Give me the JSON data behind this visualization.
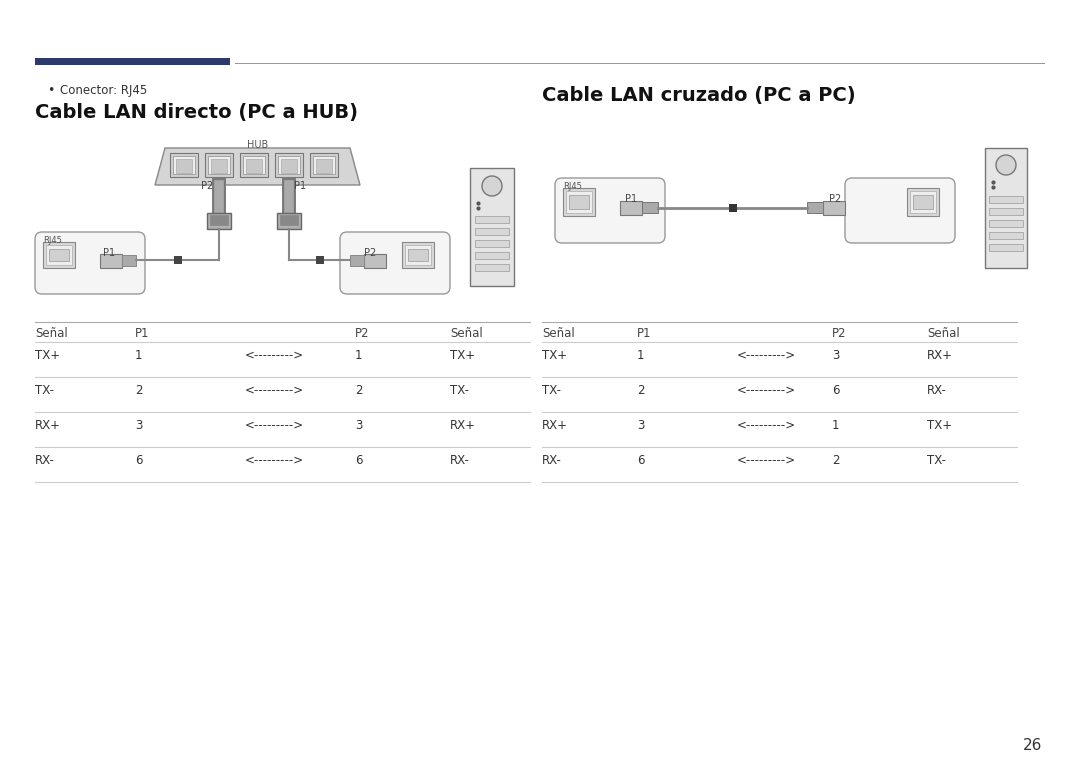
{
  "bg_color": "#ffffff",
  "page_number": "26",
  "header_bar_color": "#2b3a6b",
  "header_line_color": "#999999",
  "bullet_text": "Conector: RJ45",
  "left_title": "Cable LAN directo (PC a HUB)",
  "right_title": "Cable LAN cruzado (PC a PC)",
  "left_table_header": [
    "Señal",
    "P1",
    "",
    "P2",
    "Señal"
  ],
  "left_table_rows": [
    [
      "TX+",
      "1",
      "<--------->",
      "1",
      "TX+"
    ],
    [
      "TX-",
      "2",
      "<--------->",
      "2",
      "TX-"
    ],
    [
      "RX+",
      "3",
      "<--------->",
      "3",
      "RX+"
    ],
    [
      "RX-",
      "6",
      "<--------->",
      "6",
      "RX-"
    ]
  ],
  "right_table_header": [
    "Señal",
    "P1",
    "",
    "P2",
    "Señal"
  ],
  "right_table_rows": [
    [
      "TX+",
      "1",
      "<--------->",
      "3",
      "RX+"
    ],
    [
      "TX-",
      "2",
      "<--------->",
      "6",
      "RX-"
    ],
    [
      "RX+",
      "3",
      "<--------->",
      "1",
      "TX+"
    ],
    [
      "RX-",
      "6",
      "<--------->",
      "2",
      "TX-"
    ]
  ],
  "title_fontsize": 14,
  "body_fontsize": 8.5,
  "header_row_fontsize": 8.5,
  "bullet_fontsize": 8.5,
  "line_color_dark": "#888888",
  "line_color_light": "#cccccc",
  "text_color": "#333333",
  "diagram_line_color": "#666666",
  "hub_body_color": "#d5d5d5",
  "port_bg": "#e8e8e8",
  "connector_body": "#b0b0b0",
  "connector_plug": "#888888",
  "box_border": "#aaaaaa",
  "box_fill": "#f7f7f7",
  "pc_body": "#e5e5e5",
  "pc_border": "#777777"
}
